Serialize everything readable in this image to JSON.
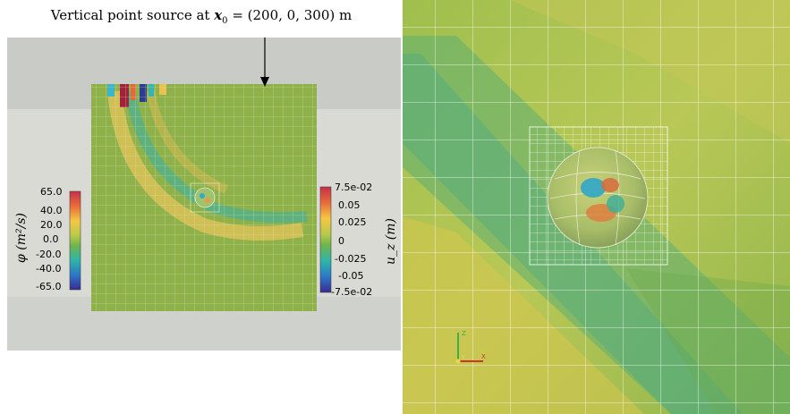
{
  "annotation": {
    "text_prefix": "Vertical point source at ",
    "vec": "x",
    "sub": "0",
    "value": " = (200, 0, 300) m"
  },
  "colorbar_left": {
    "title": "φ (m²/s)",
    "labels": [
      "65.0",
      "40.0",
      "20.0",
      "0.0",
      "-20.0",
      "-40.0",
      "-65.0"
    ]
  },
  "colorbar_right": {
    "title": "u_z (m)",
    "labels": [
      "7.5e-02",
      "0.05",
      "0.025",
      "0",
      "-0.025",
      "-0.05",
      "-7.5e-02"
    ]
  },
  "axes_gizmo": {
    "x": "X",
    "y": "Y",
    "z": "Z"
  },
  "colors": {
    "background_gray": "#c8cbc6",
    "wall_gray": "#d9dad4",
    "field_green": "#8fb14a",
    "mesh_line": "#ffffff"
  }
}
